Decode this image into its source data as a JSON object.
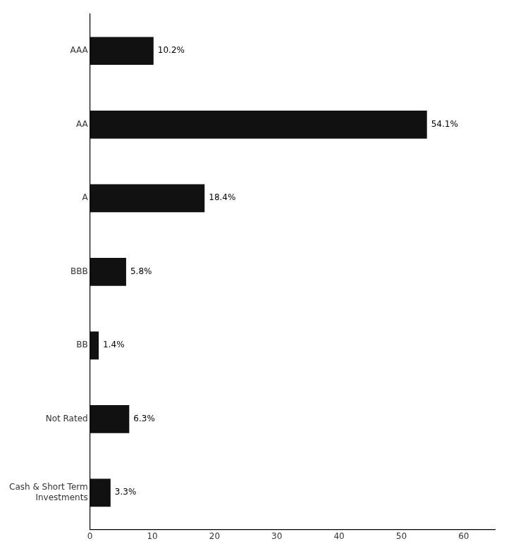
{
  "chart_data": {
    "type": "bar",
    "orientation": "horizontal",
    "categories": [
      "AAA",
      "AA",
      "A",
      "BBB",
      "BB",
      "Not Rated",
      "Cash & Short Term\nInvestments"
    ],
    "values": [
      10.2,
      54.1,
      18.4,
      5.8,
      1.4,
      6.3,
      3.3
    ],
    "value_labels": [
      "10.2%",
      "54.1%",
      "18.4%",
      "5.8%",
      "1.4%",
      "6.3%",
      "3.3%"
    ],
    "data_labels": true,
    "color": "#111111",
    "xlim": [
      0,
      65
    ],
    "xticks": [
      0,
      10,
      20,
      30,
      40,
      50,
      60
    ],
    "grid": false
  }
}
